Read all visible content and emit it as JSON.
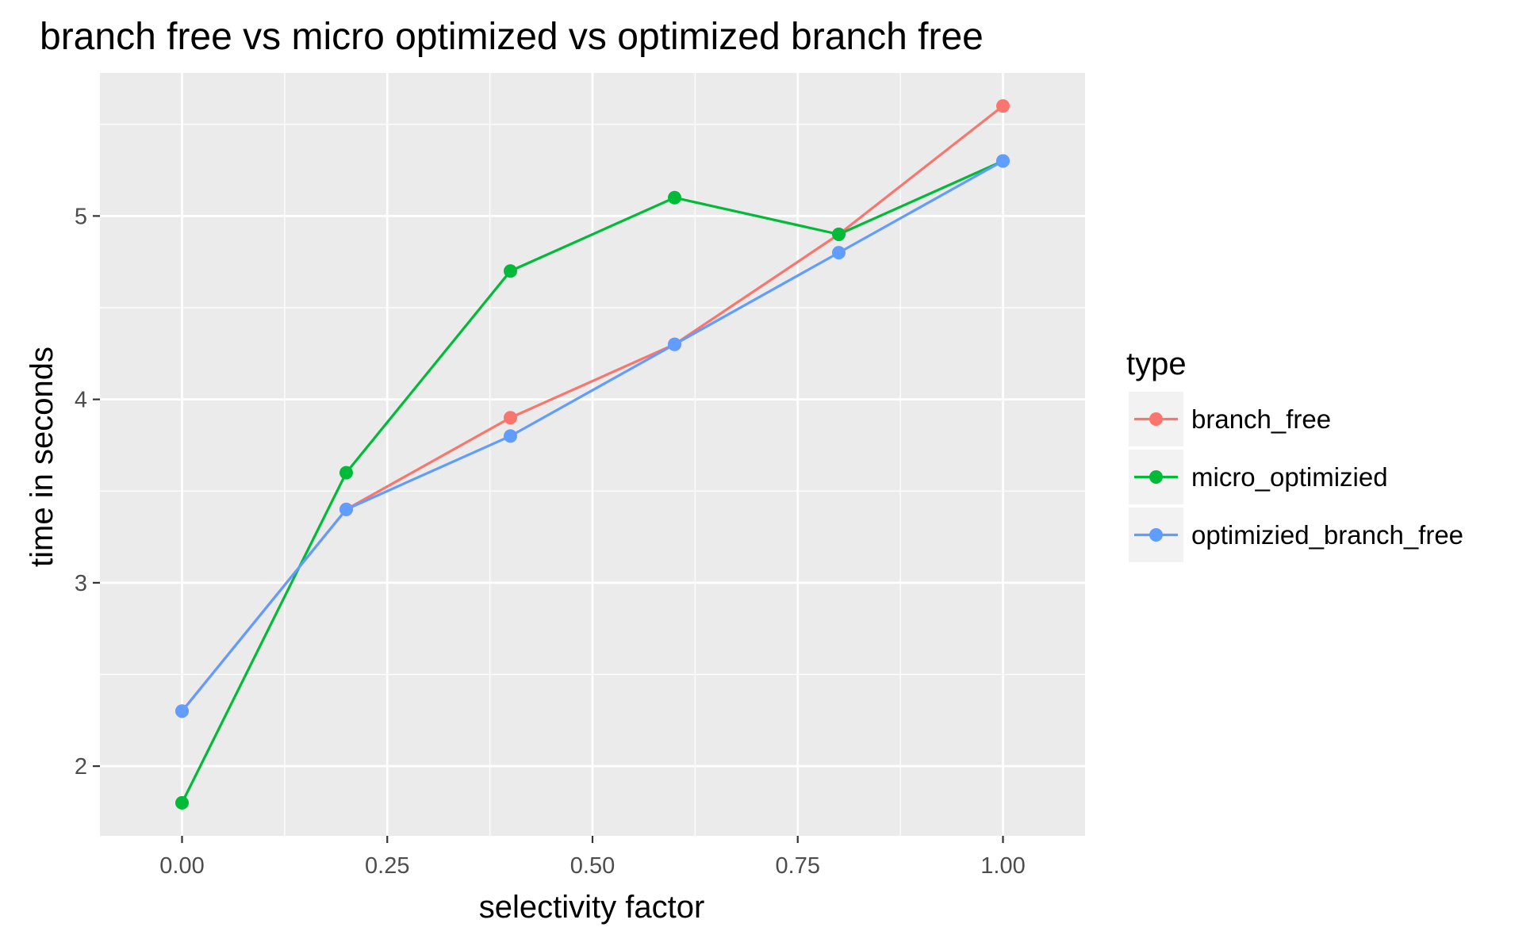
{
  "chart_data": {
    "type": "line",
    "title": "branch free vs micro optimized vs optimized branch free",
    "xlabel": "selectivity factor",
    "ylabel": "time in seconds",
    "xlim": [
      -0.1,
      1.1
    ],
    "ylim": [
      1.62,
      5.78
    ],
    "x_ticks": [
      0.0,
      0.25,
      0.5,
      0.75,
      1.0
    ],
    "x_tick_labels": [
      "0.00",
      "0.25",
      "0.50",
      "0.75",
      "1.00"
    ],
    "y_ticks": [
      2,
      3,
      4,
      5
    ],
    "y_tick_labels": [
      "2",
      "3",
      "4",
      "5"
    ],
    "grid": true,
    "legend": {
      "title": "type",
      "position": "right"
    },
    "x": [
      0.0,
      0.2,
      0.4,
      0.6,
      0.8,
      1.0
    ],
    "series": [
      {
        "name": "branch_free",
        "color": "#F8766D",
        "values": [
          2.3,
          3.4,
          3.9,
          4.3,
          4.9,
          5.6
        ]
      },
      {
        "name": "micro_optimizied",
        "color": "#00BA38",
        "values": [
          1.8,
          3.6,
          4.7,
          5.1,
          4.9,
          5.3
        ]
      },
      {
        "name": "optimizied_branch_free",
        "color": "#619CFF",
        "values": [
          2.3,
          3.4,
          3.8,
          4.3,
          4.8,
          5.3
        ]
      }
    ]
  }
}
